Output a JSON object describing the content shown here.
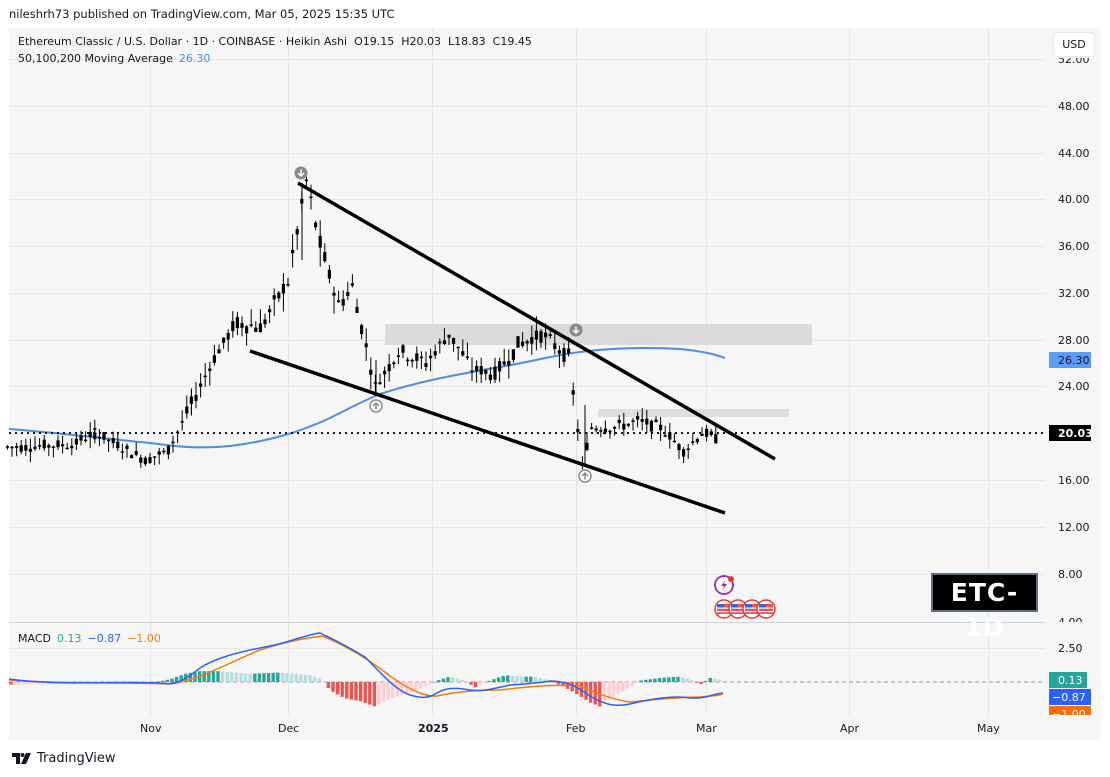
{
  "header": {
    "published": "nileshrh73 published on TradingView.com, Mar 05, 2025 15:35 UTC"
  },
  "legend": {
    "symbol": "Ethereum Classic / U.S. Dollar · 1D · COINBASE · Heikin Ashi",
    "ohlc": {
      "O": "O19.15",
      "H": "H20.03",
      "L": "L18.83",
      "C": "C19.45"
    },
    "ma_label": "50,100,200 Moving Average",
    "ma_value": "26.30"
  },
  "toolbar": {
    "currency_button": "USD"
  },
  "price_axis": {
    "ticks": [
      "52.00",
      "48.00",
      "44.00",
      "40.00",
      "36.00",
      "32.00",
      "28.00",
      "24.00",
      "20.00",
      "16.00",
      "12.00",
      "8.00",
      "4.00"
    ],
    "ma_tag": "26.30",
    "last_price_tag": "20.03"
  },
  "macd": {
    "label": "MACD",
    "hist": "0.13",
    "macd": "−0.87",
    "signal": "−1.00",
    "axis_tick": "2.50",
    "tag_hist": "0.13",
    "tag_macd": "−0.87",
    "tag_signal": "−1.00"
  },
  "time_axis": {
    "labels": [
      "Nov",
      "Dec",
      "2025",
      "Feb",
      "Mar",
      "Apr",
      "May"
    ]
  },
  "badge": "ETC-1D",
  "footer": {
    "brand": "TradingView"
  },
  "colors": {
    "candle": "#000000",
    "ma": "#4a8ee8",
    "macd_line": "#2962ff",
    "signal_line": "#f57c00",
    "hist_up": "#26a69a",
    "hist_up_light": "#b2dfdb",
    "hist_down": "#ef5350",
    "hist_down_light": "#ffcdd2",
    "zone": "#d9d9d9"
  },
  "chart_data": {
    "type": "candlestick",
    "title": "Ethereum Classic / U.S. Dollar · 1D · COINBASE · Heikin Ashi",
    "xlabel": "",
    "ylabel": "USD",
    "ylim": [
      4,
      52
    ],
    "grid": true,
    "x_ticks": [
      "Nov",
      "Dec",
      "2025",
      "Feb",
      "Mar",
      "Apr",
      "May"
    ],
    "last": {
      "open": 19.15,
      "high": 20.03,
      "low": 18.83,
      "close": 19.45
    },
    "current_price": 20.03,
    "moving_average": {
      "name": "50,100,200 Moving Average",
      "value": 26.3,
      "points": [
        [
          "Oct-01",
          20.3
        ],
        [
          "Oct-15",
          19.8
        ],
        [
          "Oct-31",
          19.1
        ],
        [
          "Nov-15",
          19.6
        ],
        [
          "Dec-01",
          20.9
        ],
        [
          "Dec-15",
          23.0
        ],
        [
          "Jan-01",
          24.8
        ],
        [
          "Jan-15",
          25.8
        ],
        [
          "Feb-01",
          26.8
        ],
        [
          "Feb-15",
          27.3
        ],
        [
          "Mar-01",
          27.0
        ],
        [
          "Mar-05",
          26.3
        ]
      ]
    },
    "approx_price_path": [
      [
        "Oct-01",
        18.8
      ],
      [
        "Oct-15",
        19.0
      ],
      [
        "Oct-20",
        20.0
      ],
      [
        "Oct-31",
        17.7
      ],
      [
        "Nov-05",
        18.5
      ],
      [
        "Nov-10",
        22.5
      ],
      [
        "Nov-15",
        26.5
      ],
      [
        "Nov-20",
        29.5
      ],
      [
        "Nov-25",
        29.0
      ],
      [
        "Dec-01",
        33.0
      ],
      [
        "Dec-05",
        41.5
      ],
      [
        "Dec-08",
        36.0
      ],
      [
        "Dec-12",
        31.0
      ],
      [
        "Dec-15",
        32.5
      ],
      [
        "Dec-20",
        24.0
      ],
      [
        "Dec-25",
        27.0
      ],
      [
        "Dec-31",
        26.0
      ],
      [
        "Jan-05",
        28.5
      ],
      [
        "Jan-10",
        25.5
      ],
      [
        "Jan-15",
        25.0
      ],
      [
        "Jan-20",
        27.5
      ],
      [
        "Jan-25",
        28.5
      ],
      [
        "Jan-31",
        26.5
      ],
      [
        "Feb-03",
        17.2
      ],
      [
        "Feb-05",
        20.5
      ],
      [
        "Feb-10",
        20.5
      ],
      [
        "Feb-15",
        21.0
      ],
      [
        "Feb-20",
        20.5
      ],
      [
        "Feb-25",
        18.5
      ],
      [
        "Mar-01",
        20.0
      ],
      [
        "Mar-05",
        19.45
      ]
    ],
    "annotations": {
      "falling_wedge_upper": [
        [
          "Dec-05",
          41.5
        ],
        [
          "Mar-20",
          18.0
        ]
      ],
      "falling_wedge_lower": [
        [
          "Nov-21",
          27.0
        ],
        [
          "Mar-05",
          13.2
        ]
      ],
      "resistance_zone_1": {
        "from": "Dec-23",
        "to": "Mar-24",
        "low": 27.5,
        "high": 29.2
      },
      "resistance_zone_2": {
        "from": "Feb-06",
        "to": "Mar-20",
        "low": 21.7,
        "high": 22.2
      },
      "pivot_markers": [
        [
          "Dec-05",
          "down"
        ],
        [
          "Dec-20",
          "up"
        ],
        [
          "Jan-31",
          "down"
        ],
        [
          "Feb-03",
          "up"
        ]
      ]
    },
    "macd": {
      "values": {
        "histogram": 0.13,
        "macd": -0.87,
        "signal": -1.0
      },
      "ylim": [
        -3,
        4
      ],
      "axis_ticks": [
        "2.50"
      ],
      "macd_points": [
        [
          "Oct-01",
          0.2
        ],
        [
          "Oct-31",
          -0.2
        ],
        [
          "Nov-15",
          1.2
        ],
        [
          "Dec-01",
          2.2
        ],
        [
          "Dec-10",
          2.7
        ],
        [
          "Dec-20",
          0.5
        ],
        [
          "Dec-31",
          -0.5
        ],
        [
          "Jan-10",
          0.4
        ],
        [
          "Jan-20",
          0.3
        ],
        [
          "Jan-31",
          0.0
        ],
        [
          "Feb-10",
          -1.5
        ],
        [
          "Feb-20",
          -1.1
        ],
        [
          "Mar-01",
          -1.0
        ],
        [
          "Mar-05",
          -0.87
        ]
      ],
      "signal_points": [
        [
          "Oct-01",
          0.1
        ],
        [
          "Oct-31",
          0.0
        ],
        [
          "Nov-15",
          0.8
        ],
        [
          "Dec-01",
          1.9
        ],
        [
          "Dec-12",
          2.4
        ],
        [
          "Dec-25",
          0.3
        ],
        [
          "Jan-02",
          -0.4
        ],
        [
          "Jan-15",
          -0.1
        ],
        [
          "Jan-31",
          0.0
        ],
        [
          "Feb-15",
          -1.3
        ],
        [
          "Mar-01",
          -1.1
        ],
        [
          "Mar-05",
          -1.0
        ]
      ]
    }
  }
}
